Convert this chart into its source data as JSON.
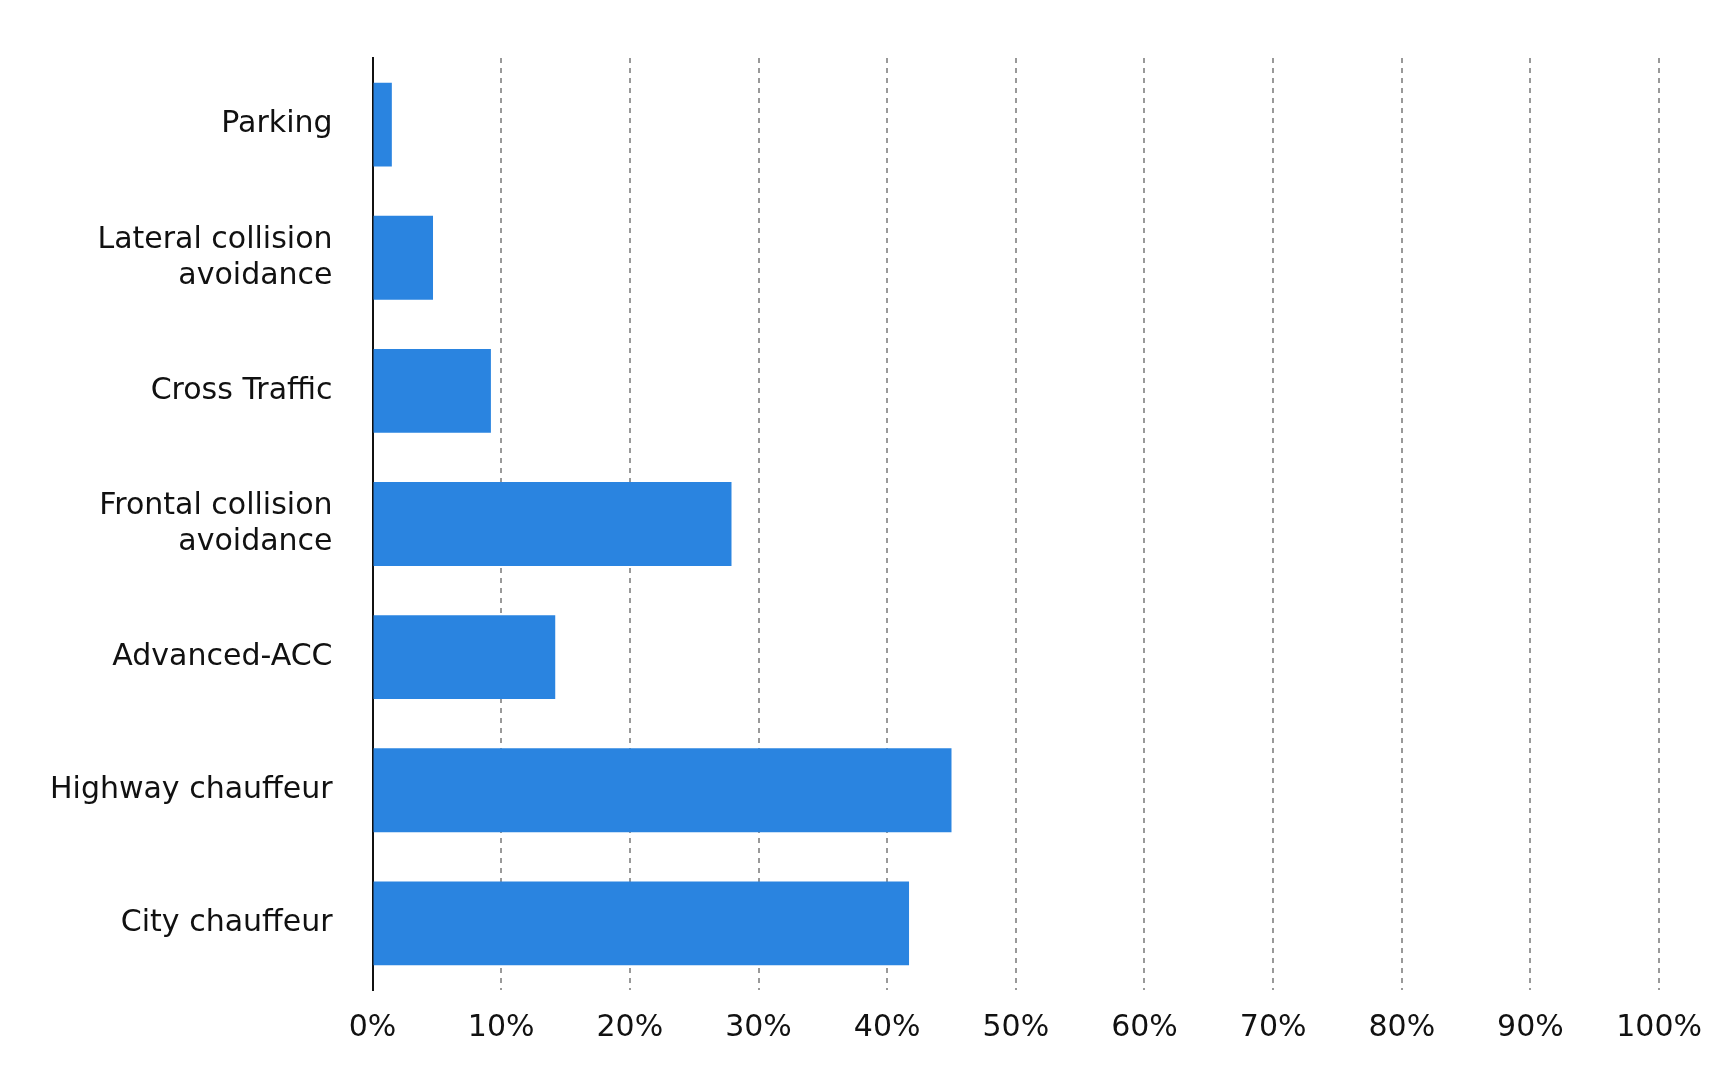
{
  "chart_data": {
    "type": "bar",
    "orientation": "horizontal",
    "categories": [
      "Parking",
      "Lateral collision avoidance",
      "Cross Traffic",
      "Frontal collision avoidance",
      "Advanced-ACC",
      "Highway chauffeur",
      "City chauffeur"
    ],
    "values": [
      1.5,
      4.7,
      9.2,
      27.9,
      14.2,
      45.0,
      41.7
    ],
    "color": "#2a84e0",
    "xlim": [
      0,
      100
    ],
    "xticks": [
      {
        "value": 0,
        "label": "0%"
      },
      {
        "value": 10,
        "label": "10%"
      },
      {
        "value": 20,
        "label": "20%"
      },
      {
        "value": 30,
        "label": "30%"
      },
      {
        "value": 40,
        "label": "40%"
      },
      {
        "value": 50,
        "label": "50%"
      },
      {
        "value": 60,
        "label": "60%"
      },
      {
        "value": 70,
        "label": "70%"
      },
      {
        "value": 80,
        "label": "80%"
      },
      {
        "value": 90,
        "label": "90%"
      },
      {
        "value": 100,
        "label": "100%"
      }
    ],
    "grid": "x"
  }
}
